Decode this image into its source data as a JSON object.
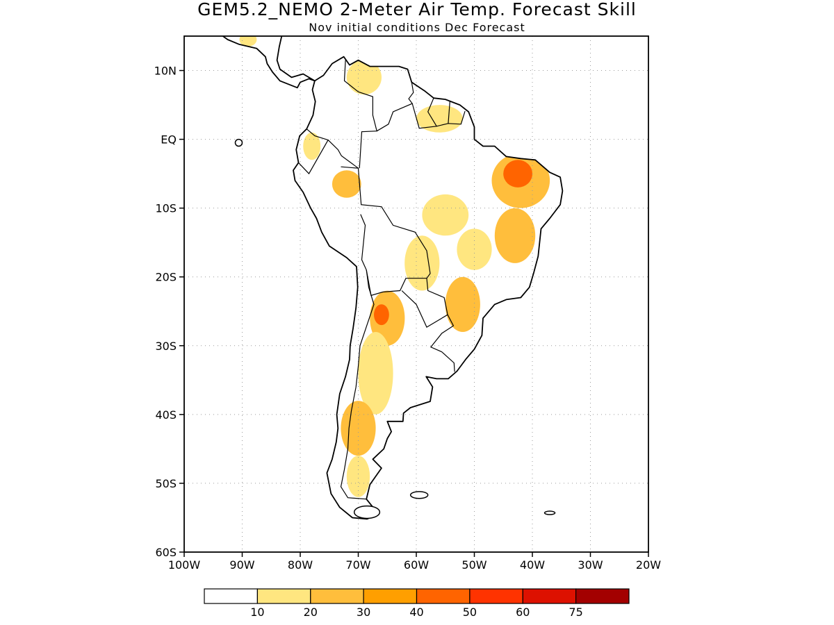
{
  "title": "GEM5.2_NEMO 2-Meter Air Temp. Forecast Skill",
  "subtitle": "Nov initial conditions  Dec Forecast",
  "map": {
    "lon_range": [
      -100,
      -20
    ],
    "lat_range": [
      -60,
      15
    ],
    "lat_ticks": [
      {
        "value": 10,
        "label": "10N"
      },
      {
        "value": 0,
        "label": "EQ"
      },
      {
        "value": -10,
        "label": "10S"
      },
      {
        "value": -20,
        "label": "20S"
      },
      {
        "value": -30,
        "label": "30S"
      },
      {
        "value": -40,
        "label": "40S"
      },
      {
        "value": -50,
        "label": "50S"
      },
      {
        "value": -60,
        "label": "60S"
      }
    ],
    "lon_ticks": [
      {
        "value": -100,
        "label": "100W"
      },
      {
        "value": -90,
        "label": "90W"
      },
      {
        "value": -80,
        "label": "80W"
      },
      {
        "value": -70,
        "label": "70W"
      },
      {
        "value": -60,
        "label": "60W"
      },
      {
        "value": -50,
        "label": "50W"
      },
      {
        "value": -40,
        "label": "40W"
      },
      {
        "value": -30,
        "label": "30W"
      },
      {
        "value": -20,
        "label": "20W"
      }
    ]
  },
  "skill_regions": [
    {
      "name": "ne-brazil",
      "lon": -42,
      "lat": -6,
      "rx": 5,
      "ry": 4,
      "level": 2
    },
    {
      "name": "ne-brazil-core",
      "lon": -42.5,
      "lat": -5,
      "rx": 2.5,
      "ry": 2,
      "level": 4
    },
    {
      "name": "ne-brazil-south",
      "lon": -43,
      "lat": -14,
      "rx": 3.5,
      "ry": 4,
      "level": 2
    },
    {
      "name": "central-brazil",
      "lon": -55,
      "lat": -11,
      "rx": 4,
      "ry": 3,
      "level": 1
    },
    {
      "name": "central-brazil-2",
      "lon": -50,
      "lat": -16,
      "rx": 3,
      "ry": 3,
      "level": 1
    },
    {
      "name": "bolivia-paraguay",
      "lon": -59,
      "lat": -18,
      "rx": 3,
      "ry": 4,
      "level": 1
    },
    {
      "name": "sw-brazil",
      "lon": -52,
      "lat": -24,
      "rx": 3,
      "ry": 4,
      "level": 2
    },
    {
      "name": "north-argentina",
      "lon": -65,
      "lat": -26,
      "rx": 3,
      "ry": 4,
      "level": 2
    },
    {
      "name": "north-argentina-core",
      "lon": -66,
      "lat": -25.5,
      "rx": 1.3,
      "ry": 1.5,
      "level": 4
    },
    {
      "name": "central-argentina",
      "lon": -67,
      "lat": -34,
      "rx": 3,
      "ry": 6,
      "level": 1
    },
    {
      "name": "patagonia-north",
      "lon": -70,
      "lat": -42,
      "rx": 3,
      "ry": 4,
      "level": 2
    },
    {
      "name": "patagonia-south",
      "lon": -70,
      "lat": -49,
      "rx": 2,
      "ry": 3,
      "level": 1
    },
    {
      "name": "peru-amazon",
      "lon": -72,
      "lat": -6.5,
      "rx": 2.5,
      "ry": 2,
      "level": 2
    },
    {
      "name": "ecuador",
      "lon": -78,
      "lat": -1,
      "rx": 1.5,
      "ry": 2,
      "level": 1
    },
    {
      "name": "venezuela",
      "lon": -69,
      "lat": 9,
      "rx": 3,
      "ry": 2.5,
      "level": 1
    },
    {
      "name": "guianas",
      "lon": -56,
      "lat": 3,
      "rx": 4,
      "ry": 2,
      "level": 1
    },
    {
      "name": "mexico",
      "lon": -89,
      "lat": 14.5,
      "rx": 1.5,
      "ry": 1,
      "level": 1
    }
  ],
  "legend": {
    "labels": [
      "10",
      "20",
      "30",
      "40",
      "50",
      "60",
      "75"
    ],
    "colors": [
      "#ffffff",
      "#ffe680",
      "#ffbe3c",
      "#ff9f00",
      "#ff6400",
      "#ff3300",
      "#dd1100",
      "#a30000"
    ]
  }
}
